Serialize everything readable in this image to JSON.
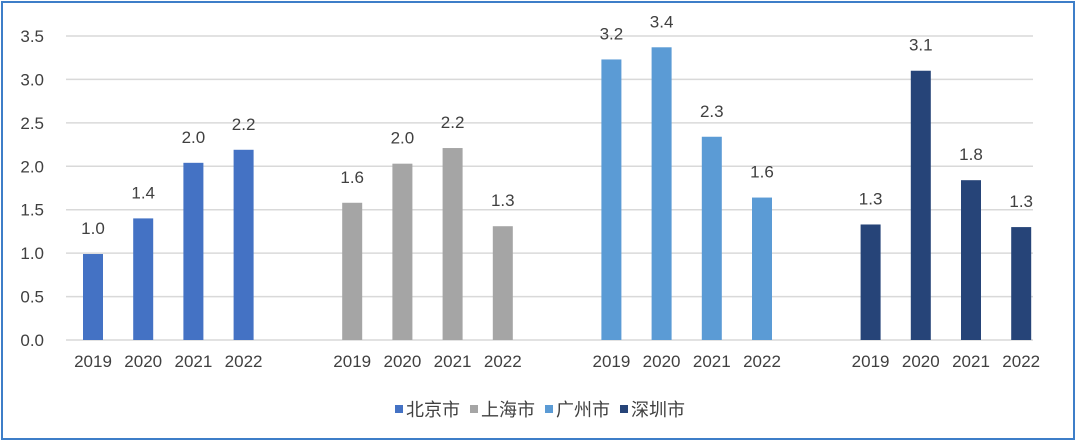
{
  "chart_data": {
    "type": "bar",
    "title": "",
    "xlabel": "",
    "ylabel": "",
    "ylim": [
      0,
      3.5
    ],
    "yticks": [
      "0.0",
      "0.5",
      "1.0",
      "1.5",
      "2.0",
      "2.5",
      "3.0",
      "3.5"
    ],
    "grid": true,
    "legend_position": "bottom",
    "categories": [
      "2019",
      "2020",
      "2021",
      "2022"
    ],
    "series": [
      {
        "name": "北京市",
        "color": "#4472c4",
        "values": [
          0.99,
          1.4,
          2.04,
          2.19
        ]
      },
      {
        "name": "上海市",
        "color": "#a5a5a5",
        "values": [
          1.58,
          2.03,
          2.21,
          1.31
        ]
      },
      {
        "name": "广州市",
        "color": "#5b9bd5",
        "values": [
          3.23,
          3.37,
          2.34,
          1.64
        ]
      },
      {
        "name": "深圳市",
        "color": "#264478",
        "values": [
          1.33,
          3.1,
          1.84,
          1.3
        ]
      }
    ]
  }
}
